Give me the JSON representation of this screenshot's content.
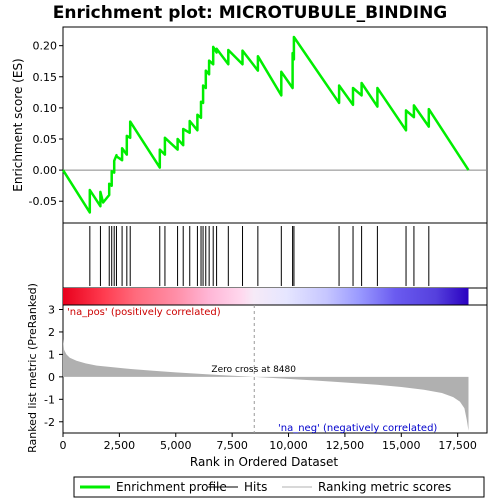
{
  "chart_data": {
    "type": "line",
    "title": "Enrichment plot: MICROTUBULE_BINDING",
    "top_panel": {
      "ylabel": "Enrichment score (ES)",
      "ylim": [
        -0.085,
        0.23
      ],
      "yticks": [
        -0.05,
        0.0,
        0.05,
        0.1,
        0.15,
        0.2
      ],
      "ytick_labels": [
        "-0.05",
        "0.00",
        "0.05",
        "0.10",
        "0.15",
        "0.20"
      ],
      "es_profile": {
        "name": "Enrichment profile",
        "color": "#00ee00",
        "x": [
          0,
          1190,
          1190,
          1660,
          1660,
          1780,
          2050,
          2050,
          2160,
          2160,
          2270,
          2270,
          2370,
          2370,
          2620,
          2620,
          2830,
          2830,
          2980,
          2980,
          4290,
          4290,
          4520,
          4520,
          5080,
          5080,
          5330,
          5330,
          5620,
          5620,
          5960,
          5960,
          6120,
          6120,
          6210,
          6210,
          6330,
          6330,
          6480,
          6480,
          6660,
          6660,
          6810,
          6810,
          7330,
          7330,
          7960,
          7960,
          8640,
          8640,
          9680,
          9680,
          10180,
          10180,
          10240,
          10240,
          12240,
          12240,
          12860,
          12860,
          13240,
          13240,
          13940,
          13940,
          15210,
          15210,
          15560,
          15560,
          16220,
          16220,
          17980
        ],
        "y": [
          0.0,
          -0.068,
          -0.032,
          -0.058,
          -0.035,
          -0.052,
          -0.04,
          -0.022,
          -0.025,
          -0.002,
          -0.004,
          0.015,
          0.024,
          0.022,
          0.016,
          0.035,
          0.025,
          0.055,
          0.052,
          0.078,
          0.004,
          0.033,
          0.025,
          0.052,
          0.033,
          0.05,
          0.04,
          0.066,
          0.06,
          0.079,
          0.064,
          0.089,
          0.084,
          0.11,
          0.108,
          0.136,
          0.132,
          0.16,
          0.154,
          0.176,
          0.17,
          0.198,
          0.189,
          0.195,
          0.17,
          0.193,
          0.17,
          0.192,
          0.16,
          0.183,
          0.12,
          0.158,
          0.132,
          0.188,
          0.178,
          0.214,
          0.108,
          0.136,
          0.105,
          0.132,
          0.12,
          0.14,
          0.102,
          0.132,
          0.064,
          0.096,
          0.085,
          0.104,
          0.07,
          0.098,
          0.0
        ]
      }
    },
    "hits": {
      "name": "Hits",
      "positions": [
        1190,
        1660,
        2050,
        2160,
        2270,
        2370,
        2620,
        2830,
        2980,
        4290,
        4520,
        5080,
        5330,
        5620,
        5960,
        6120,
        6210,
        6330,
        6480,
        6660,
        6810,
        7330,
        7960,
        8640,
        9680,
        10180,
        10240,
        12240,
        12860,
        13240,
        13940,
        15210,
        15560,
        16220
      ]
    },
    "bottom_panel": {
      "ylabel": "Ranked list metric (PreRanked)",
      "xlabel": "Rank in Ordered Dataset",
      "ylim": [
        -2.5,
        3.2
      ],
      "yticks": [
        -2,
        -1,
        0,
        1,
        2,
        3
      ],
      "ytick_labels": [
        "-2",
        "-1",
        "0",
        "1",
        "2",
        "3"
      ],
      "xlim": [
        0,
        18800
      ],
      "xticks": [
        0,
        2500,
        5000,
        7500,
        10000,
        12500,
        15000,
        17500
      ],
      "xtick_labels": [
        "0",
        "2,500",
        "5,000",
        "7,500",
        "10,000",
        "12,500",
        "15,000",
        "17,500"
      ],
      "metric_curve": {
        "name": "Ranking metric scores",
        "color": "#b0b0b0",
        "x": [
          0,
          50,
          150,
          300,
          600,
          1000,
          1500,
          2000,
          3000,
          4000,
          5000,
          6000,
          7000,
          8000,
          8480,
          9500,
          11000,
          12500,
          14000,
          15000,
          16000,
          16800,
          17300,
          17600,
          17800,
          17900,
          17980
        ],
        "y": [
          1.7,
          1.2,
          1.0,
          0.85,
          0.72,
          0.6,
          0.5,
          0.45,
          0.35,
          0.27,
          0.2,
          0.14,
          0.08,
          0.03,
          0.0,
          -0.06,
          -0.15,
          -0.25,
          -0.36,
          -0.45,
          -0.57,
          -0.72,
          -0.9,
          -1.1,
          -1.4,
          -1.9,
          -2.4
        ]
      },
      "zero_cross_label": "Zero cross at 8480",
      "zero_cross": 8480,
      "pos_label": "'na_pos' (positively correlated)",
      "neg_label": "'na_neg' (negatively correlated)",
      "pos_color": "#cc0000",
      "neg_color": "#0000cc"
    },
    "legend": {
      "placement": "bottom",
      "entries": [
        {
          "label": "Enrichment profile",
          "color": "#00ee00",
          "style": "thick-line"
        },
        {
          "label": "Hits",
          "color": "#000000",
          "style": "line"
        },
        {
          "label": "Ranking metric scores",
          "color": "#b0b0b0",
          "style": "line"
        }
      ]
    }
  }
}
